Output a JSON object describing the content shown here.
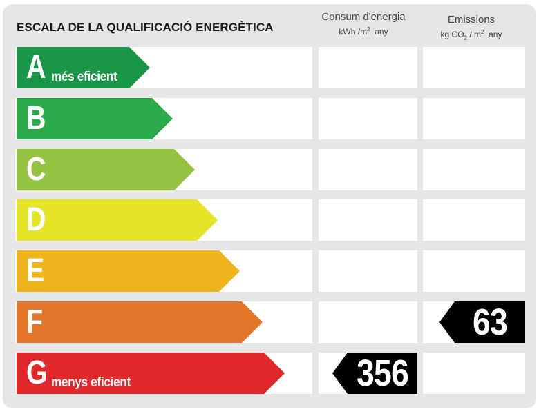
{
  "title": "ESCALA DE LA QUALIFICACIÓ ENERGÈTICA",
  "columns": {
    "energy": {
      "title": "Consum d'energia",
      "unit_prefix": "kWh /m",
      "unit_sup": "2",
      "unit_suffix": "any"
    },
    "emissions": {
      "title": "Emissions",
      "unit_prefix": "kg CO",
      "unit_sub": "2",
      "unit_mid": " / m",
      "unit_sup": "2",
      "unit_suffix": "any"
    }
  },
  "classes": [
    {
      "letter": "A",
      "label": "més eficient",
      "color": "#1a9648"
    },
    {
      "letter": "B",
      "label": "",
      "color": "#2aaa4a"
    },
    {
      "letter": "C",
      "label": "",
      "color": "#93c340"
    },
    {
      "letter": "D",
      "label": "",
      "color": "#e6e426"
    },
    {
      "letter": "E",
      "label": "",
      "color": "#f0b51c"
    },
    {
      "letter": "F",
      "label": "",
      "color": "#e37629"
    },
    {
      "letter": "G",
      "label": "menys eficient",
      "color": "#e0282a"
    }
  ],
  "ratings": {
    "energy": {
      "class": "G",
      "value": "356"
    },
    "emissions": {
      "class": "F",
      "value": "63"
    }
  }
}
